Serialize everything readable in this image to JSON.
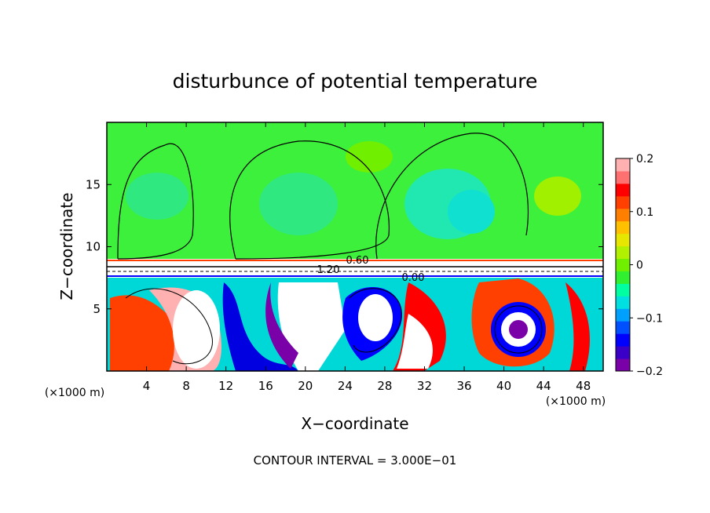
{
  "chart_data": {
    "type": "heatmap",
    "title": "disturbunce of potential temperature",
    "xlabel": "X−coordinate",
    "ylabel": "Z−coordinate",
    "x_unit_left": "(×1000 m)",
    "x_unit_right": "(×1000 m)",
    "xlim": [
      0,
      50
    ],
    "ylim": [
      0,
      20
    ],
    "xticks": [
      4,
      8,
      12,
      16,
      20,
      24,
      28,
      32,
      36,
      40,
      44,
      48
    ],
    "yticks": [
      5,
      10,
      15
    ],
    "colorbar": {
      "min": -0.2,
      "max": 0.2,
      "tick_labels": [
        "0.2",
        "0.1",
        "0",
        "−0.1",
        "−0.2"
      ],
      "tick_values": [
        0.2,
        0.1,
        0,
        -0.1,
        -0.2
      ],
      "colors": [
        "#7a00a8",
        "#3a00c8",
        "#0000ff",
        "#0050ff",
        "#00a0ff",
        "#00e0e0",
        "#00ffa0",
        "#30f030",
        "#70f000",
        "#b0f000",
        "#e6e600",
        "#ffc000",
        "#ff8000",
        "#ff4000",
        "#ff0000",
        "#ff7070",
        "#ffb0b0"
      ]
    },
    "contour_labels": [
      "0.60",
      "1.20",
      "0.00"
    ],
    "footer": "CONTOUR INTERVAL = 3.000E−01"
  }
}
